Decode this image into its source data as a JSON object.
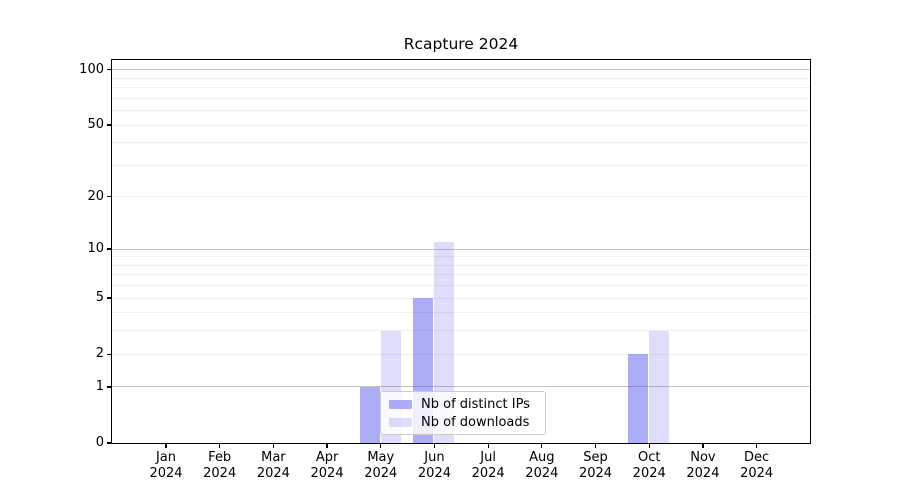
{
  "chart_data": {
    "type": "bar",
    "title": "Rcapture 2024",
    "x_months": [
      "Jan",
      "Feb",
      "Mar",
      "Apr",
      "May",
      "Jun",
      "Jul",
      "Aug",
      "Sep",
      "Oct",
      "Nov",
      "Dec"
    ],
    "x_year": "2024",
    "series": [
      {
        "name": "Nb of distinct IPs",
        "color": "rgba(60,60,235,0.42)",
        "values": [
          0,
          0,
          0,
          0,
          1,
          5,
          0,
          0,
          0,
          2,
          0,
          0
        ]
      },
      {
        "name": "Nb of downloads",
        "color": "rgba(60,60,235,0.17)",
        "values": [
          0,
          0,
          0,
          0,
          3,
          11,
          0,
          0,
          0,
          3,
          0,
          0
        ]
      }
    ],
    "y_axis": {
      "scale": "log1p",
      "tick_labels": [
        0,
        1,
        2,
        5,
        10,
        20,
        50,
        100
      ],
      "min": 0,
      "max": 113
    },
    "grid": {
      "major_values": [
        1,
        10,
        100
      ],
      "minor_values": [
        2,
        3,
        4,
        5,
        6,
        7,
        8,
        9,
        20,
        30,
        40,
        50,
        60,
        70,
        80,
        90
      ],
      "major_color": "#c4c4c4",
      "minor_color": "#efefef"
    },
    "legend": {
      "position": "lower-center-inside"
    },
    "colors": {
      "spine": "#000000",
      "background": "#ffffff"
    }
  }
}
